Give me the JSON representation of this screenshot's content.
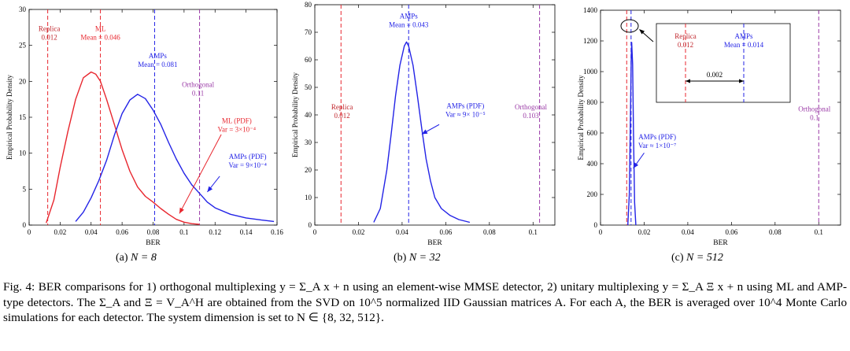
{
  "colors": {
    "red": "#e8262e",
    "blue": "#2323e6",
    "purple": "#9a3aa6",
    "darkred": "#c0262c",
    "axis": "#000000"
  },
  "chart_data": [
    {
      "type": "line",
      "xlabel": "BER",
      "ylabel": "Empirical Probability Density",
      "xlim": [
        0,
        0.16
      ],
      "ylim": [
        0,
        30
      ],
      "xticks": [
        0,
        0.02,
        0.04,
        0.06,
        0.08,
        0.1,
        0.12,
        0.14,
        0.16
      ],
      "yticks": [
        0,
        5,
        10,
        15,
        20,
        25,
        30
      ],
      "xtick_labels": [
        "0",
        "0.02",
        "0.04",
        "0.06",
        "0.08",
        "0.1",
        "0.12",
        "0.14",
        "0.16"
      ],
      "ytick_labels": [
        "0",
        "5",
        "10",
        "15",
        "20",
        "25",
        "30"
      ],
      "series": [
        {
          "name": "ML (PDF)",
          "color": "red",
          "x": [
            0.011,
            0.016,
            0.02,
            0.025,
            0.03,
            0.035,
            0.04,
            0.043,
            0.046,
            0.05,
            0.055,
            0.06,
            0.065,
            0.07,
            0.075,
            0.08,
            0.085,
            0.09,
            0.095,
            0.1,
            0.105,
            0.11
          ],
          "y": [
            0.3,
            3.5,
            8,
            13,
            17.5,
            20.5,
            21.3,
            21,
            20,
            17.5,
            14,
            10.5,
            7.5,
            5.3,
            4,
            3.2,
            2.3,
            1.5,
            0.8,
            0.4,
            0.2,
            0.1
          ]
        },
        {
          "name": "AMPs (PDF)",
          "color": "blue",
          "x": [
            0.03,
            0.035,
            0.04,
            0.045,
            0.05,
            0.055,
            0.06,
            0.065,
            0.07,
            0.075,
            0.08,
            0.085,
            0.09,
            0.095,
            0.1,
            0.105,
            0.11,
            0.115,
            0.12,
            0.13,
            0.14,
            0.15,
            0.158
          ],
          "y": [
            0.5,
            1.8,
            3.8,
            6.2,
            9,
            12.5,
            15.5,
            17.4,
            18.2,
            17.6,
            16,
            14,
            11.5,
            9.2,
            7.2,
            5.6,
            4.4,
            3.2,
            2.4,
            1.5,
            1,
            0.7,
            0.5
          ]
        }
      ],
      "vlines": [
        {
          "x": 0.012,
          "color": "red"
        },
        {
          "x": 0.046,
          "color": "red"
        },
        {
          "x": 0.081,
          "color": "blue"
        },
        {
          "x": 0.11,
          "color": "purple"
        }
      ],
      "annotations": [
        {
          "lines": [
            "Replica",
            "0.012"
          ],
          "color": "darkred",
          "at": [
            0.013,
            27
          ]
        },
        {
          "lines": [
            "ML",
            "Mean = 0.046"
          ],
          "color": "red",
          "at": [
            0.046,
            27
          ]
        },
        {
          "lines": [
            "AMPs",
            "Mean = 0.081"
          ],
          "color": "blue",
          "at": [
            0.083,
            23.2
          ]
        },
        {
          "lines": [
            "Orthogonal",
            "0.11"
          ],
          "color": "purple",
          "at": [
            0.109,
            19.2
          ]
        },
        {
          "lines": [
            "ML (PDF)",
            "Var = 3×10⁻⁴"
          ],
          "color": "red",
          "at": [
            0.134,
            14.2
          ]
        },
        {
          "lines": [
            "AMPs (PDF)",
            "Var = 9×10⁻⁴"
          ],
          "color": "blue",
          "at": [
            0.141,
            9.2
          ]
        }
      ],
      "arrows": [
        {
          "from": [
            0.124,
            12.6
          ],
          "to": [
            0.097,
            1.6
          ],
          "color": "red"
        },
        {
          "from": [
            0.123,
            6.8
          ],
          "to": [
            0.115,
            4.6
          ],
          "color": "blue"
        }
      ]
    },
    {
      "type": "line",
      "xlabel": "BER",
      "ylabel": "Empirical Probability Density",
      "xlim": [
        0,
        0.11
      ],
      "ylim": [
        0,
        80
      ],
      "xticks": [
        0,
        0.02,
        0.04,
        0.06,
        0.08,
        0.1
      ],
      "yticks": [
        0,
        10,
        20,
        30,
        40,
        50,
        60,
        70,
        80
      ],
      "xtick_labels": [
        "0",
        "0.02",
        "0.04",
        "0.06",
        "0.08",
        "0.1"
      ],
      "ytick_labels": [
        "0",
        "10",
        "20",
        "30",
        "40",
        "50",
        "60",
        "70",
        "80"
      ],
      "series": [
        {
          "name": "AMPs (PDF)",
          "color": "blue",
          "x": [
            0.027,
            0.03,
            0.033,
            0.035,
            0.037,
            0.039,
            0.041,
            0.042,
            0.043,
            0.045,
            0.047,
            0.049,
            0.051,
            0.053,
            0.055,
            0.058,
            0.062,
            0.066,
            0.071
          ],
          "y": [
            1,
            6,
            20,
            33,
            47,
            58,
            65,
            66.5,
            65,
            58,
            47,
            35,
            24,
            16,
            10,
            6,
            3.5,
            2,
            1
          ]
        }
      ],
      "vlines": [
        {
          "x": 0.012,
          "color": "red"
        },
        {
          "x": 0.043,
          "color": "blue"
        },
        {
          "x": 0.103,
          "color": "purple"
        }
      ],
      "annotations": [
        {
          "lines": [
            "AMPs",
            "Mean = 0.043"
          ],
          "color": "blue",
          "at": [
            0.043,
            75
          ]
        },
        {
          "lines": [
            "Replica",
            "0.012"
          ],
          "color": "darkred",
          "at": [
            0.0125,
            42
          ]
        },
        {
          "lines": [
            "AMPs (PDF)",
            "Var ≈ 9× 10⁻⁵"
          ],
          "color": "blue",
          "at": [
            0.069,
            42.5
          ]
        },
        {
          "lines": [
            "Orthogonal",
            "0.103"
          ],
          "color": "purple",
          "at": [
            0.099,
            42
          ]
        }
      ],
      "arrows": [
        {
          "from": [
            0.057,
            36.5
          ],
          "to": [
            0.049,
            33
          ],
          "color": "blue"
        }
      ]
    },
    {
      "type": "line",
      "xlabel": "BER",
      "ylabel": "Empirical Probability Density",
      "xlim": [
        0,
        0.11
      ],
      "ylim": [
        0,
        1400
      ],
      "xticks": [
        0,
        0.02,
        0.04,
        0.06,
        0.08,
        0.1
      ],
      "yticks": [
        0,
        200,
        400,
        600,
        800,
        1000,
        1200,
        1400
      ],
      "xtick_labels": [
        "0",
        "0.02",
        "0.04",
        "0.06",
        "0.08",
        "0.1"
      ],
      "ytick_labels": [
        "0",
        "200",
        "400",
        "600",
        "800",
        "1000",
        "1200",
        "1400"
      ],
      "series": [
        {
          "name": "AMPs (PDF)",
          "color": "blue",
          "x": [
            0.0125,
            0.0132,
            0.0137,
            0.0141,
            0.0143,
            0.0147,
            0.0151,
            0.0156,
            0.0162
          ],
          "y": [
            0,
            200,
            700,
            1100,
            1190,
            1050,
            600,
            150,
            0
          ]
        }
      ],
      "vlines": [
        {
          "x": 0.012,
          "color": "red"
        },
        {
          "x": 0.014,
          "color": "blue"
        },
        {
          "x": 0.1,
          "color": "purple"
        }
      ],
      "annotations": [
        {
          "lines": [
            "AMPs (PDF)",
            "Var ≈ 1×10⁻⁷"
          ],
          "color": "blue",
          "at": [
            0.026,
            560
          ]
        },
        {
          "lines": [
            "Orthogonal",
            "0.1"
          ],
          "color": "purple",
          "at": [
            0.098,
            740
          ]
        }
      ],
      "arrows": [
        {
          "from": [
            0.02,
            470
          ],
          "to": [
            0.015,
            370
          ],
          "color": "blue"
        }
      ],
      "inset": {
        "lines": [
          {
            "x": 0.012,
            "color": "red"
          },
          {
            "x": 0.014,
            "color": "blue"
          }
        ],
        "labels": [
          {
            "lines": [
              "Replica",
              "0.012"
            ],
            "color": "darkred"
          },
          {
            "lines": [
              "AMPs",
              "Mean = 0.014"
            ],
            "color": "blue"
          }
        ],
        "gap_label": "0.002"
      }
    }
  ],
  "subcaptions": [
    {
      "label": "(a)",
      "n": "N = 8"
    },
    {
      "label": "(b)",
      "n": "N = 32"
    },
    {
      "label": "(c)",
      "n": "N = 512"
    }
  ],
  "caption": {
    "fig": "Fig. 4:",
    "p1": "BER comparisons for 1) orthogonal multiplexing",
    "eq1": "y = Σ_A x + n",
    "p2": "using an element-wise MMSE detector, 2) unitary multiplexing",
    "eq2": "y = Σ_A Ξ x + n",
    "p3": "using ML and AMP-type detectors. The",
    "sym1": "Σ_A",
    "p4": "and",
    "eq3": "Ξ = V_A^H",
    "p5": "are obtained from the SVD on",
    "num1": "10^5",
    "p6": "normalized IID Gaussian matrices",
    "sym2": "A",
    "p7": ". For each",
    "sym3": "A",
    "p8": ", the BER is averaged over",
    "num2": "10^4",
    "p9": "Monte Carlo simulations for each detector. The system dimension is set to",
    "eq4": "N ∈ {8, 32, 512}",
    "p10": "."
  }
}
